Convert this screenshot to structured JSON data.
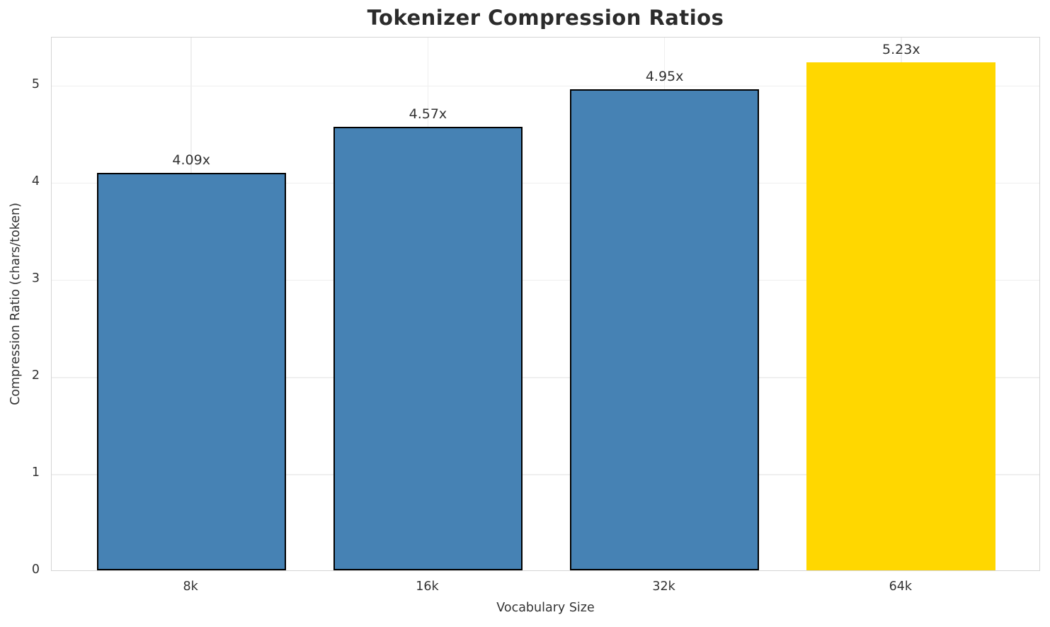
{
  "chart_data": {
    "type": "bar",
    "title": "Tokenizer Compression Ratios",
    "xlabel": "Vocabulary Size",
    "ylabel": "Compression Ratio (chars/token)",
    "categories": [
      "8k",
      "16k",
      "32k",
      "64k"
    ],
    "values": [
      4.09,
      4.57,
      4.95,
      5.23
    ],
    "bar_labels": [
      "4.09x",
      "4.57x",
      "4.95x",
      "5.23x"
    ],
    "bar_colors": [
      "#4682b4",
      "#4682b4",
      "#4682b4",
      "#ffd700"
    ],
    "bar_edge_colors": [
      "#000000",
      "#000000",
      "#000000",
      "none"
    ],
    "yticks": [
      0,
      1,
      2,
      3,
      4,
      5
    ],
    "ylim": [
      0,
      5.5
    ],
    "grid": true,
    "legend_position": "none",
    "colors": {
      "bar_default": "#4682b4",
      "bar_highlight": "#ffd700",
      "grid": "#efefef",
      "spine": "#d4d4d4",
      "text": "#333333",
      "title": "#2b2b2b"
    }
  }
}
